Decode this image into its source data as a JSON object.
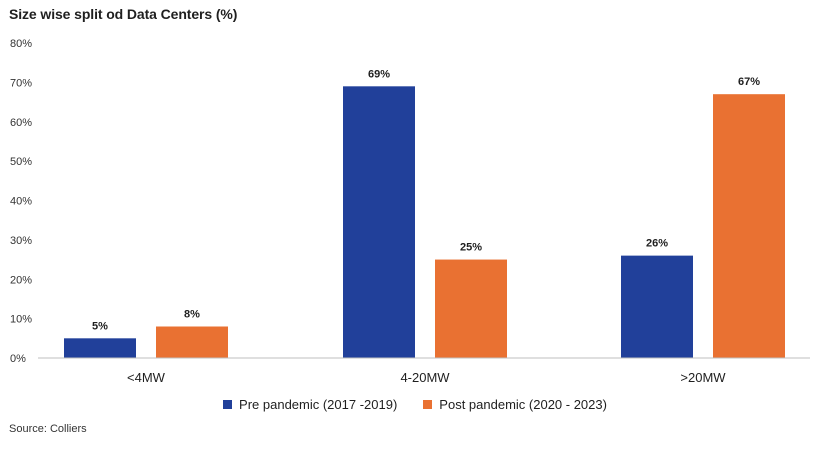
{
  "chart_data": {
    "type": "bar",
    "title": "Size wise split od Data Centers (%)",
    "categories": [
      "<4MW",
      "4-20MW",
      ">20MW"
    ],
    "series": [
      {
        "name": "Pre pandemic (2017 -2019)",
        "color": "#21409a",
        "values": [
          5,
          69,
          26
        ],
        "labels": [
          "5%",
          "69%",
          "26%"
        ]
      },
      {
        "name": "Post pandemic (2020 - 2023)",
        "color": "#e97132",
        "values": [
          8,
          25,
          67
        ],
        "labels": [
          "8%",
          "25%",
          "67%"
        ]
      }
    ],
    "ylim": [
      0,
      80
    ],
    "yticks": [
      "0%",
      "10%",
      "20%",
      "30%",
      "40%",
      "50%",
      "60%",
      "70%",
      "80%"
    ],
    "grid": false,
    "legend_position": "bottom"
  },
  "source": "Source: Colliers"
}
